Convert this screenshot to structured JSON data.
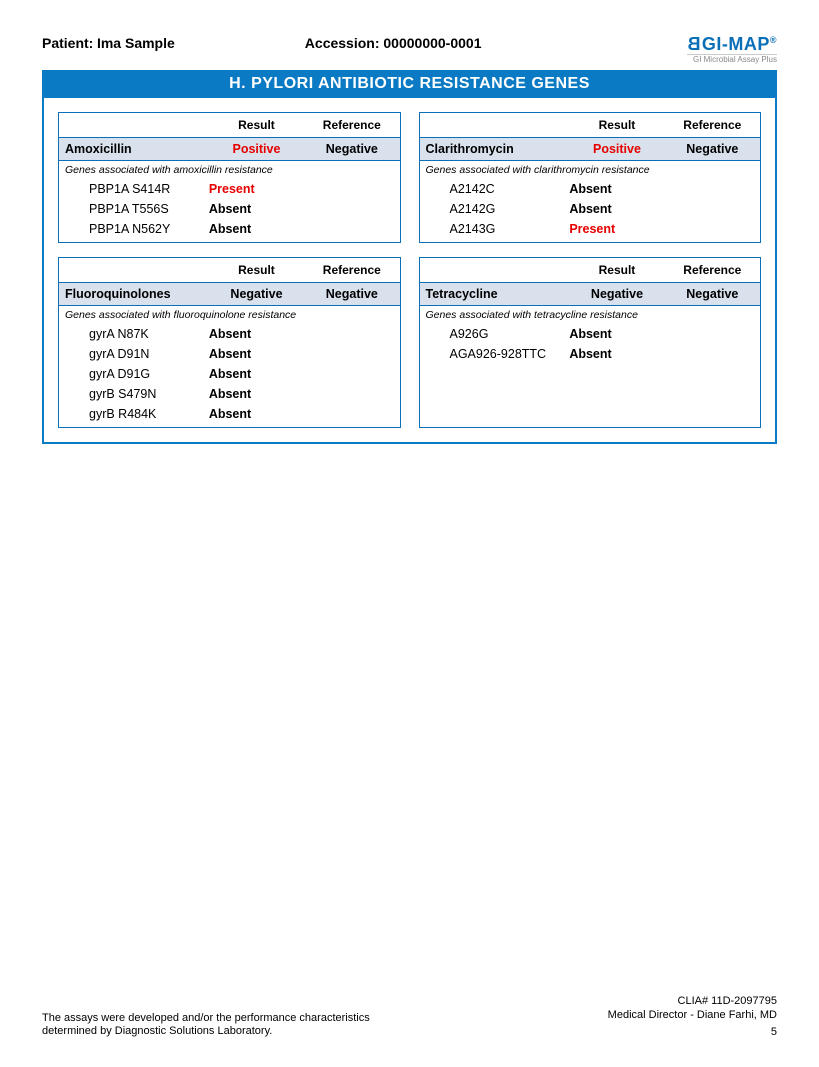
{
  "header": {
    "patient_label": "Patient:",
    "patient_name": "Ima Sample",
    "accession_label": "Accession:",
    "accession_value": "00000000-0001",
    "logo_text": "GI-MAP",
    "logo_sub": "GI Microbial Assay Plus"
  },
  "title": "H. PYLORI ANTIBIOTIC RESISTANCE GENES",
  "column_headers": {
    "result": "Result",
    "reference": "Reference"
  },
  "panels": [
    {
      "drug": "Amoxicillin",
      "result": "Positive",
      "result_flag": true,
      "reference": "Negative",
      "note": "Genes associated with amoxicillin resistance",
      "genes": [
        {
          "name": "PBP1A S414R",
          "status": "Present",
          "flag": true
        },
        {
          "name": "PBP1A T556S",
          "status": "Absent",
          "flag": false
        },
        {
          "name": "PBP1A N562Y",
          "status": "Absent",
          "flag": false
        }
      ]
    },
    {
      "drug": "Clarithromycin",
      "result": "Positive",
      "result_flag": true,
      "reference": "Negative",
      "note": "Genes associated with clarithromycin resistance",
      "genes": [
        {
          "name": "A2142C",
          "status": "Absent",
          "flag": false
        },
        {
          "name": "A2142G",
          "status": "Absent",
          "flag": false
        },
        {
          "name": "A2143G",
          "status": "Present",
          "flag": true
        }
      ]
    },
    {
      "drug": "Fluoroquinolones",
      "result": "Negative",
      "result_flag": false,
      "reference": "Negative",
      "note": "Genes associated with fluoroquinolone resistance",
      "genes": [
        {
          "name": "gyrA N87K",
          "status": "Absent",
          "flag": false
        },
        {
          "name": "gyrA D91N",
          "status": "Absent",
          "flag": false
        },
        {
          "name": "gyrA D91G",
          "status": "Absent",
          "flag": false
        },
        {
          "name": "gyrB S479N",
          "status": "Absent",
          "flag": false
        },
        {
          "name": "gyrB R484K",
          "status": "Absent",
          "flag": false
        }
      ]
    },
    {
      "drug": "Tetracycline",
      "result": "Negative",
      "result_flag": false,
      "reference": "Negative",
      "note": "Genes associated with tetracycline resistance",
      "genes": [
        {
          "name": "A926G",
          "status": "Absent",
          "flag": false
        },
        {
          "name": "AGA926-928TTC",
          "status": "Absent",
          "flag": false
        }
      ]
    }
  ],
  "footer": {
    "left": "The assays were developed and/or the performance characteristics determined by Diagnostic Solutions Laboratory.",
    "clia": "CLIA# 11D-2097795",
    "director": "Medical Director - Diane Farhi, MD",
    "page": "5"
  },
  "colors": {
    "brand_blue": "#0a7ac4",
    "header_blue": "#0a6fb7",
    "row_tint": "#d8e1ec",
    "alert_red": "#e60000"
  }
}
